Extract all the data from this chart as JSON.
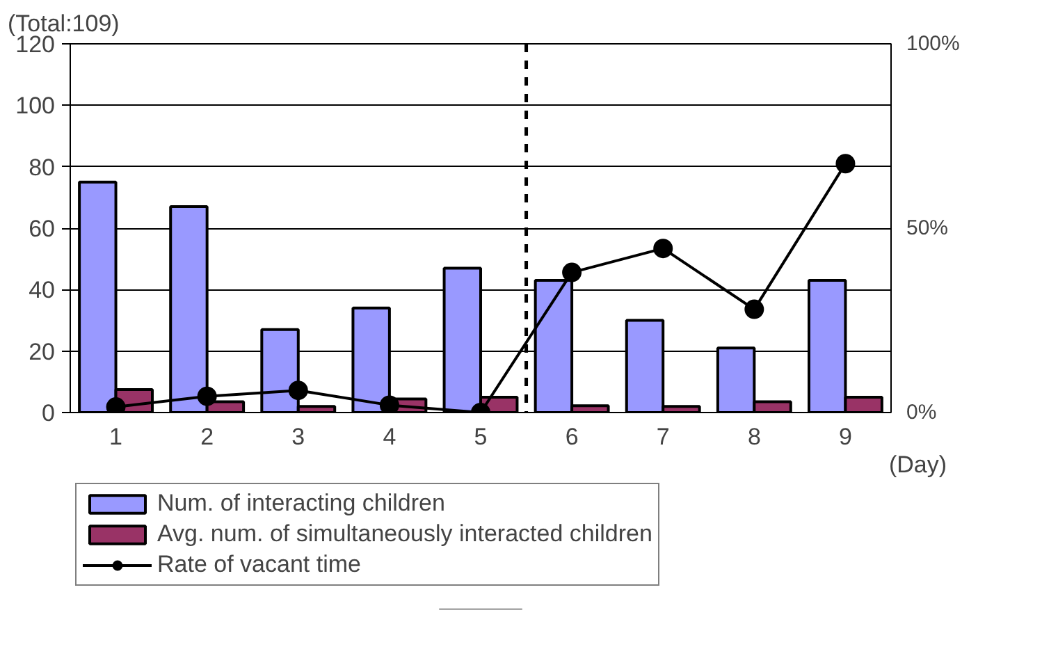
{
  "chart_data": {
    "type": "bar",
    "x": [
      1,
      2,
      3,
      4,
      5,
      6,
      7,
      8,
      9
    ],
    "xlim": [
      0.5,
      9.5
    ],
    "xticks": [
      1,
      2,
      3,
      4,
      5,
      6,
      7,
      8,
      9
    ],
    "xlabel": "(Day)",
    "ylim": [
      0,
      120
    ],
    "yticks": [
      0,
      20,
      40,
      60,
      80,
      100,
      120
    ],
    "y2lim": [
      0,
      100
    ],
    "y2ticks": [
      {
        "value": 0,
        "label": "0%"
      },
      {
        "value": 50,
        "label": "50%"
      },
      {
        "value": 100,
        "label": "100%"
      }
    ],
    "series": [
      {
        "name": "Num. of interacting children",
        "color": "#9999ff",
        "values": [
          75,
          67,
          27,
          34,
          47,
          43,
          30,
          21,
          43
        ]
      },
      {
        "name": "Avg. num. of simultaneously interacted children",
        "color": "#993366",
        "values": [
          7.5,
          3.5,
          2,
          4.4,
          5,
          2.2,
          2,
          3.5,
          5
        ]
      },
      {
        "name": "Rate of vacant time",
        "type": "line",
        "axis": "y2",
        "color": "#000000",
        "marker": "circle",
        "values": [
          1.5,
          4.4,
          6,
          2,
          0,
          38,
          44.5,
          28,
          67.5
        ]
      }
    ],
    "ref_lines": [
      {
        "axis": "x",
        "value": 5.5,
        "color": "#000000",
        "line_style": "dashed"
      }
    ],
    "annotations": [
      "(Total:109)"
    ],
    "grid": "y",
    "legend": "bottom"
  }
}
